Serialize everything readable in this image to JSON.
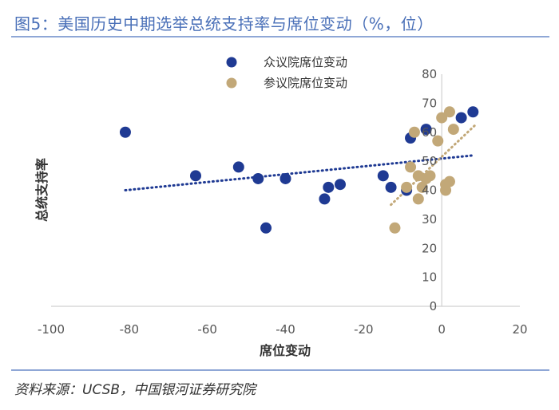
{
  "figure": {
    "title": "图5：美国历史中期选举总统支持率与席位变动（%，位）",
    "source": "资料来源：UCSB，中国银河证券研究院"
  },
  "chart_data": {
    "type": "scatter",
    "xlabel": "席位变动",
    "ylabel": "总统支持率",
    "xlim": [
      -100,
      20
    ],
    "ylim": [
      0,
      80
    ],
    "x_ticks": [
      -100,
      -80,
      -60,
      -40,
      -20,
      0,
      20
    ],
    "y_ticks": [
      0,
      10,
      20,
      30,
      40,
      50,
      60,
      70,
      80
    ],
    "legend_position": "top",
    "series": [
      {
        "name": "众议院席位变动",
        "color": "#1f3a93",
        "points": [
          {
            "x": -81,
            "y": 60
          },
          {
            "x": -63,
            "y": 45
          },
          {
            "x": -52,
            "y": 48
          },
          {
            "x": -47,
            "y": 44
          },
          {
            "x": -45,
            "y": 27
          },
          {
            "x": -40,
            "y": 44
          },
          {
            "x": -30,
            "y": 37
          },
          {
            "x": -29,
            "y": 41
          },
          {
            "x": -26,
            "y": 42
          },
          {
            "x": -15,
            "y": 45
          },
          {
            "x": -13,
            "y": 41
          },
          {
            "x": -9,
            "y": 40
          },
          {
            "x": -8,
            "y": 58
          },
          {
            "x": -4,
            "y": 61
          },
          {
            "x": 5,
            "y": 65
          },
          {
            "x": 8,
            "y": 67
          }
        ],
        "trend": {
          "x": [
            -81,
            8
          ],
          "y": [
            40,
            52
          ]
        }
      },
      {
        "name": "参议院席位变动",
        "color": "#c2a878",
        "points": [
          {
            "x": -12,
            "y": 27
          },
          {
            "x": -9,
            "y": 41
          },
          {
            "x": -8,
            "y": 48
          },
          {
            "x": -7,
            "y": 60
          },
          {
            "x": -6,
            "y": 37
          },
          {
            "x": -6,
            "y": 45
          },
          {
            "x": -5,
            "y": 41
          },
          {
            "x": -4,
            "y": 44
          },
          {
            "x": -3,
            "y": 45
          },
          {
            "x": -1,
            "y": 57
          },
          {
            "x": 0,
            "y": 65
          },
          {
            "x": 1,
            "y": 40
          },
          {
            "x": 1,
            "y": 42
          },
          {
            "x": 2,
            "y": 67
          },
          {
            "x": 2,
            "y": 43
          },
          {
            "x": 3,
            "y": 61
          }
        ],
        "trend": {
          "x": [
            -13,
            9
          ],
          "y": [
            35,
            63
          ]
        }
      }
    ]
  }
}
